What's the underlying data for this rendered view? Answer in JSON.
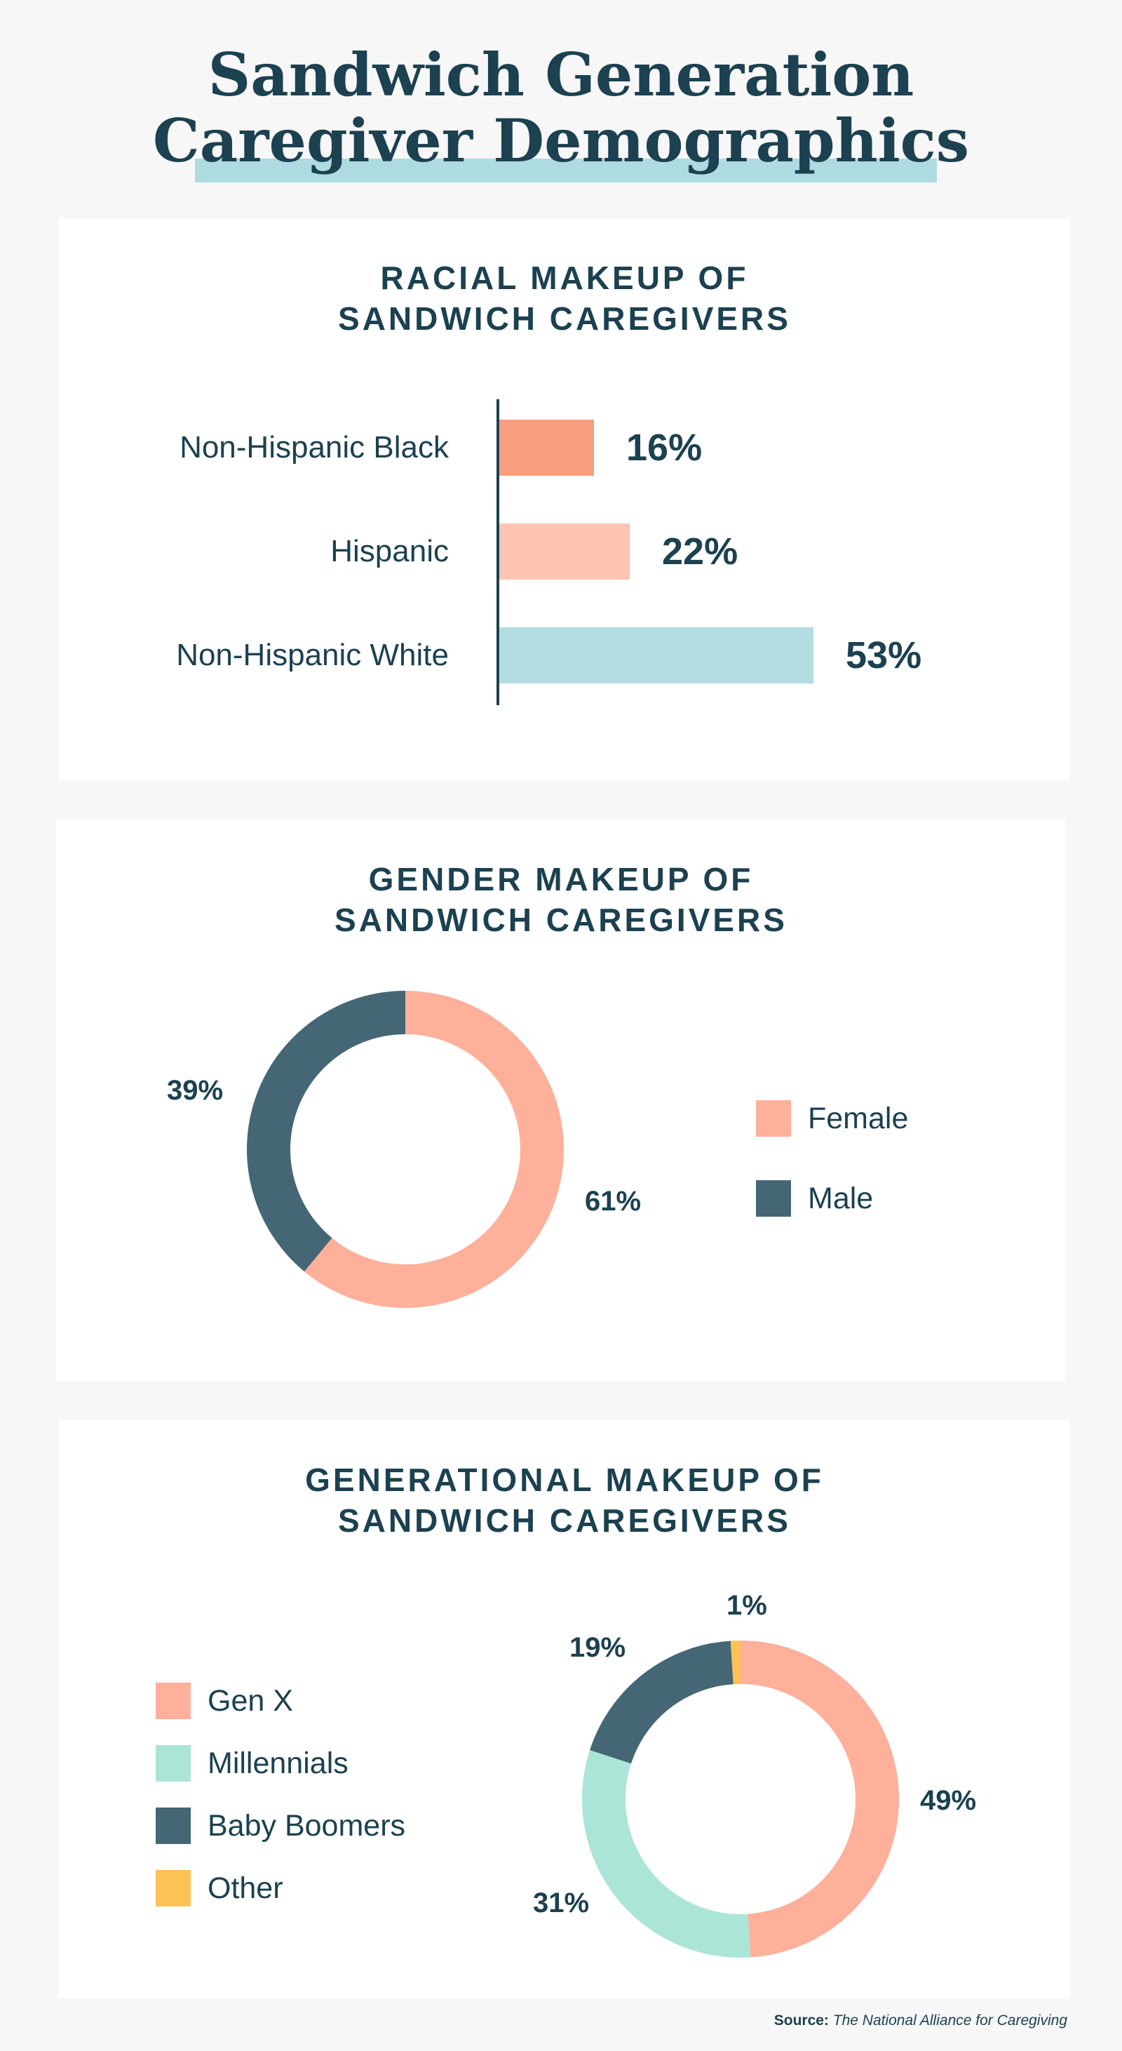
{
  "title": {
    "line1": "Sandwich Generation",
    "line2": "Caregiver Demographics"
  },
  "colors": {
    "navy": "#1c4150",
    "salmon_dark": "#f89e7f",
    "salmon_light": "#fec4b4",
    "teal_light": "#b4dde2",
    "female": "#feb09b",
    "male": "#456674",
    "mint": "#abe5d7",
    "yellow": "#fdc154",
    "highlight": "#aedbe0"
  },
  "chart_data": [
    {
      "type": "bar",
      "orientation": "horizontal",
      "title_line1": "RACIAL MAKEUP OF",
      "title_line2": "SANDWICH CAREGIVERS",
      "categories": [
        "Non-Hispanic Black",
        "Hispanic",
        "Non-Hispanic White"
      ],
      "values": [
        16,
        22,
        53
      ],
      "value_labels": [
        "16%",
        "22%",
        "53%"
      ],
      "colors": [
        "#f89e7f",
        "#fec4b4",
        "#b4dde2"
      ],
      "xlim": [
        0,
        100
      ]
    },
    {
      "type": "pie",
      "style": "donut",
      "title_line1": "GENDER MAKEUP OF",
      "title_line2": "SANDWICH CAREGIVERS",
      "slices": [
        {
          "name": "Female",
          "value": 61,
          "label": "61%",
          "color": "#feb09b"
        },
        {
          "name": "Male",
          "value": 39,
          "label": "39%",
          "color": "#456674"
        }
      ],
      "legend_position": "right"
    },
    {
      "type": "pie",
      "style": "donut",
      "title_line1": "GENERATIONAL MAKEUP OF",
      "title_line2": "SANDWICH CAREGIVERS",
      "slices": [
        {
          "name": "Gen X",
          "value": 49,
          "label": "49%",
          "color": "#feb09b"
        },
        {
          "name": "Millennials",
          "value": 31,
          "label": "31%",
          "color": "#abe5d7"
        },
        {
          "name": "Baby Boomers",
          "value": 19,
          "label": "19%",
          "color": "#456674"
        },
        {
          "name": "Other",
          "value": 1,
          "label": "1%",
          "color": "#fdc154"
        }
      ],
      "legend_position": "left"
    }
  ],
  "source": {
    "prefix": "Source:",
    "text": "The National Alliance for Caregiving"
  }
}
